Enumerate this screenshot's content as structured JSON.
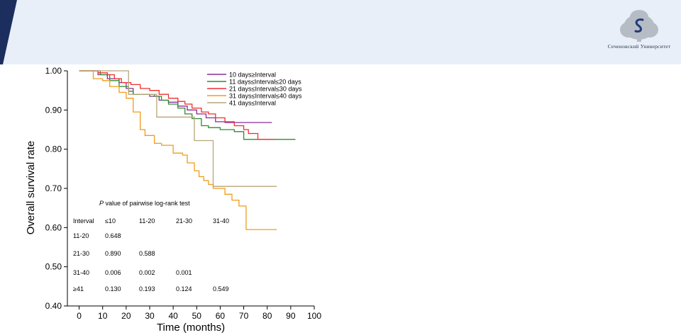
{
  "header": {
    "band_color": "#e8eff9",
    "stripe_color": "#1b2e5e",
    "logo_icon": "tree-s-logo-icon",
    "logo_text": "Сеченовский Университет"
  },
  "chart_data": {
    "type": "line",
    "step": true,
    "xlabel": "Time (months)",
    "ylabel": "Overall survival rate",
    "xlim": [
      -5,
      100
    ],
    "ylim": [
      0.4,
      1.0
    ],
    "xticks": [
      "0",
      "10",
      "20",
      "30",
      "40",
      "50",
      "60",
      "70",
      "80",
      "90",
      "100"
    ],
    "yticks": [
      "1.00",
      "0.90",
      "0.80",
      "0.70",
      "0.60",
      "0.50",
      "0.40"
    ],
    "grid": false,
    "legend_position": "top-right",
    "series": [
      {
        "name": "10 days≥Interval",
        "color": "#8b2a9a",
        "points": [
          [
            0,
            1.0
          ],
          [
            8,
            0.99
          ],
          [
            12,
            0.98
          ],
          [
            17,
            0.97
          ],
          [
            20,
            0.955
          ],
          [
            23,
            0.94
          ],
          [
            30,
            0.935
          ],
          [
            34,
            0.925
          ],
          [
            38,
            0.92
          ],
          [
            42,
            0.91
          ],
          [
            46,
            0.9
          ],
          [
            50,
            0.89
          ],
          [
            54,
            0.88
          ],
          [
            58,
            0.87
          ],
          [
            62,
            0.868
          ],
          [
            82,
            0.868
          ]
        ]
      },
      {
        "name": "11 days≤Interval≤20 days",
        "color": "#2f8a2f",
        "points": [
          [
            0,
            1.0
          ],
          [
            9,
            0.99
          ],
          [
            13,
            0.975
          ],
          [
            17,
            0.96
          ],
          [
            21,
            0.948
          ],
          [
            23,
            0.94
          ],
          [
            32,
            0.935
          ],
          [
            35,
            0.925
          ],
          [
            38,
            0.915
          ],
          [
            42,
            0.905
          ],
          [
            45,
            0.89
          ],
          [
            48,
            0.878
          ],
          [
            52,
            0.86
          ],
          [
            55,
            0.855
          ],
          [
            60,
            0.85
          ],
          [
            66,
            0.845
          ],
          [
            70,
            0.825
          ],
          [
            92,
            0.825
          ]
        ]
      },
      {
        "name": "21 days≤Interval≤30 days",
        "color": "#ee2f2f",
        "points": [
          [
            0,
            1.0
          ],
          [
            8,
            0.995
          ],
          [
            12,
            0.99
          ],
          [
            15,
            0.98
          ],
          [
            18,
            0.97
          ],
          [
            22,
            0.965
          ],
          [
            26,
            0.955
          ],
          [
            30,
            0.95
          ],
          [
            34,
            0.94
          ],
          [
            38,
            0.93
          ],
          [
            42,
            0.922
          ],
          [
            45,
            0.915
          ],
          [
            48,
            0.905
          ],
          [
            52,
            0.895
          ],
          [
            55,
            0.89
          ],
          [
            58,
            0.88
          ],
          [
            62,
            0.87
          ],
          [
            66,
            0.86
          ],
          [
            70,
            0.85
          ],
          [
            72,
            0.84
          ],
          [
            76,
            0.825
          ],
          [
            83,
            0.825
          ]
        ]
      },
      {
        "name": "31 days≤Interval≤40 days",
        "color": "#f29b1a",
        "points": [
          [
            0,
            1.0
          ],
          [
            6,
            0.98
          ],
          [
            10,
            0.975
          ],
          [
            13,
            0.96
          ],
          [
            17,
            0.945
          ],
          [
            20,
            0.93
          ],
          [
            23,
            0.895
          ],
          [
            26,
            0.85
          ],
          [
            28,
            0.835
          ],
          [
            32,
            0.815
          ],
          [
            35,
            0.81
          ],
          [
            40,
            0.79
          ],
          [
            44,
            0.785
          ],
          [
            46,
            0.765
          ],
          [
            49,
            0.745
          ],
          [
            51,
            0.73
          ],
          [
            53,
            0.72
          ],
          [
            55,
            0.71
          ],
          [
            57,
            0.7
          ],
          [
            62,
            0.685
          ],
          [
            65,
            0.67
          ],
          [
            68,
            0.655
          ],
          [
            71,
            0.595
          ],
          [
            84,
            0.595
          ]
        ]
      },
      {
        "name": "41 days≤Interval",
        "color": "#b8a57a",
        "points": [
          [
            0,
            1.0
          ],
          [
            20,
            1.0
          ],
          [
            21,
            0.94
          ],
          [
            32,
            0.94
          ],
          [
            33,
            0.882
          ],
          [
            48,
            0.882
          ],
          [
            49,
            0.822
          ],
          [
            56,
            0.822
          ],
          [
            57,
            0.705
          ],
          [
            84,
            0.705
          ]
        ]
      }
    ],
    "annotation_title": "P value of pairwise log-rank test",
    "annotation_title_italic": "P",
    "table": {
      "headers": [
        "Interval",
        "≤10",
        "11-20",
        "21-30",
        "31-40"
      ],
      "rows": [
        [
          "11-20",
          "0.648",
          "",
          "",
          ""
        ],
        [
          "21-30",
          "0.890",
          "0.588",
          "",
          ""
        ],
        [
          "31-40",
          "0.006",
          "0.002",
          "0.001",
          ""
        ],
        [
          "≥41",
          "0.130",
          "0.193",
          "0.124",
          "0.549"
        ]
      ]
    }
  }
}
